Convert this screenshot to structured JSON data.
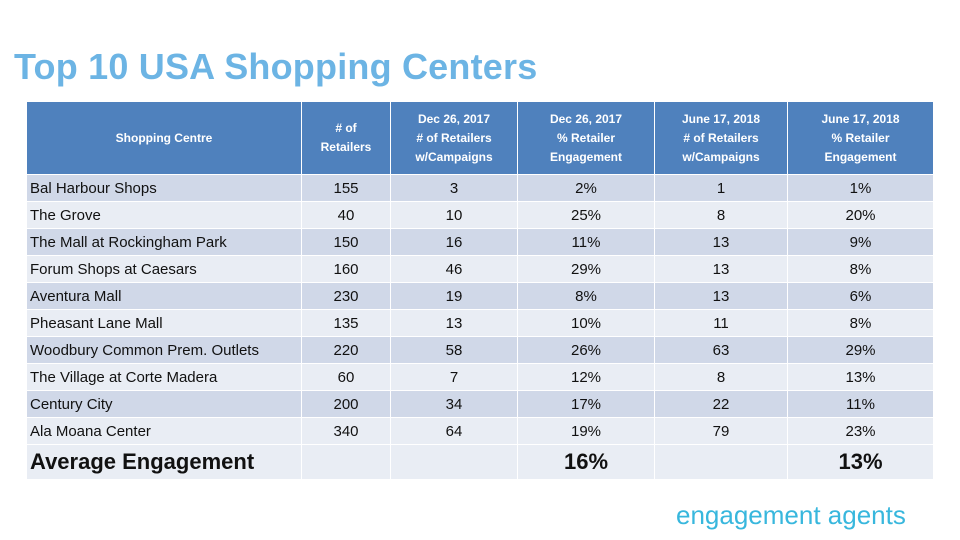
{
  "title": "Top 10 USA Shopping Centers",
  "brand": "engagement agents",
  "table": {
    "headers": [
      "Shopping Centre",
      "# of\nRetailers",
      "Dec 26, 2017\n# of Retailers\nw/Campaigns",
      "Dec 26, 2017\n% Retailer\nEngagement",
      "June 17, 2018\n# of Retailers\nw/Campaigns",
      "June 17, 2018\n% Retailer\nEngagement"
    ],
    "rows": [
      [
        "Bal Harbour Shops",
        "155",
        "3",
        "2%",
        "1",
        "1%"
      ],
      [
        "The Grove",
        "40",
        "10",
        "25%",
        "8",
        "20%"
      ],
      [
        "The Mall at Rockingham Park",
        "150",
        "16",
        "11%",
        "13",
        "9%"
      ],
      [
        "Forum Shops at Caesars",
        "160",
        "46",
        "29%",
        "13",
        "8%"
      ],
      [
        "Aventura Mall",
        "230",
        "19",
        "8%",
        "13",
        "6%"
      ],
      [
        "Pheasant Lane Mall",
        "135",
        "13",
        "10%",
        "11",
        "8%"
      ],
      [
        "Woodbury Common Prem. Outlets",
        "220",
        "58",
        "26%",
        "63",
        "29%"
      ],
      [
        "The Village at Corte Madera",
        "60",
        "7",
        "12%",
        "8",
        "13%"
      ],
      [
        "Century City",
        "200",
        "34",
        "17%",
        "22",
        "11%"
      ],
      [
        "Ala Moana Center",
        "340",
        "64",
        "19%",
        "79",
        "23%"
      ]
    ],
    "average": [
      "Average Engagement",
      "",
      "",
      "16%",
      "",
      "13%"
    ]
  },
  "colors": {
    "title": "#6cb4e4",
    "header_bg": "#4f81bd",
    "row_odd": "#d0d8e8",
    "row_even": "#e9edf4",
    "brand": "#38b7dd"
  }
}
